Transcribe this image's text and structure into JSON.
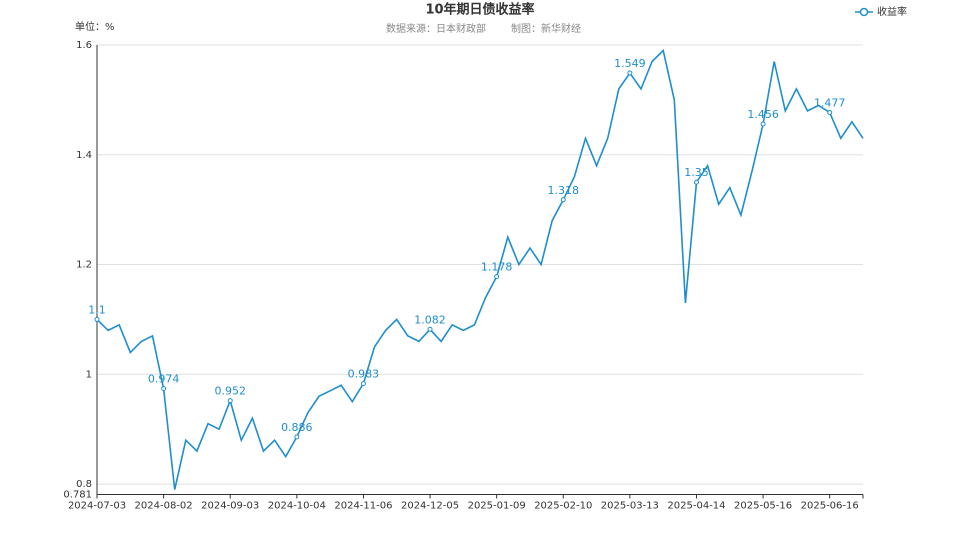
{
  "chart_data": {
    "type": "line",
    "title": "10年期日债收益率",
    "subtitle": [
      "数据来源：日本财政部",
      "制图：新华财经"
    ],
    "unit_label": "单位：%",
    "legend_position": "top-right",
    "categories": [
      "2024-07-03",
      null,
      null,
      null,
      null,
      null,
      "2024-08-02",
      null,
      null,
      null,
      null,
      null,
      "2024-09-03",
      null,
      null,
      null,
      null,
      null,
      "2024-10-04",
      null,
      null,
      null,
      null,
      null,
      "2024-11-06",
      null,
      null,
      null,
      null,
      null,
      "2024-12-05",
      null,
      null,
      null,
      null,
      null,
      "2025-01-09",
      null,
      null,
      null,
      null,
      null,
      "2025-02-10",
      null,
      null,
      null,
      null,
      null,
      "2025-03-13",
      null,
      null,
      null,
      null,
      null,
      "2025-04-14",
      null,
      null,
      null,
      null,
      null,
      "2025-05-16",
      null,
      null,
      null,
      null,
      null,
      "2025-06-16",
      null,
      null,
      null
    ],
    "series": [
      {
        "name": "收益率",
        "color": "#1e8ecf",
        "values": [
          1.1,
          1.08,
          1.09,
          1.04,
          1.06,
          1.07,
          0.974,
          0.79,
          0.88,
          0.86,
          0.91,
          0.9,
          0.952,
          0.88,
          0.92,
          0.86,
          0.88,
          0.85,
          0.886,
          0.93,
          0.96,
          0.97,
          0.98,
          0.95,
          0.983,
          1.05,
          1.08,
          1.1,
          1.07,
          1.06,
          1.082,
          1.06,
          1.09,
          1.08,
          1.09,
          1.14,
          1.178,
          1.25,
          1.2,
          1.23,
          1.2,
          1.28,
          1.318,
          1.36,
          1.43,
          1.38,
          1.43,
          1.52,
          1.549,
          1.52,
          1.57,
          1.59,
          1.5,
          1.13,
          1.35,
          1.38,
          1.31,
          1.34,
          1.29,
          1.37,
          1.456,
          1.57,
          1.48,
          1.52,
          1.48,
          1.49,
          1.477,
          1.43,
          1.46,
          1.43
        ],
        "value_labels": [
          "1.1",
          null,
          null,
          null,
          null,
          null,
          "0.974",
          null,
          null,
          null,
          null,
          null,
          "0.952",
          null,
          null,
          null,
          null,
          null,
          "0.886",
          null,
          null,
          null,
          null,
          null,
          "0.983",
          null,
          null,
          null,
          null,
          null,
          "1.082",
          null,
          null,
          null,
          null,
          null,
          "1.178",
          null,
          null,
          null,
          null,
          null,
          "1.318",
          null,
          null,
          null,
          null,
          null,
          "1.549",
          null,
          null,
          null,
          null,
          null,
          "1.35",
          null,
          null,
          null,
          null,
          null,
          "1.456",
          null,
          null,
          null,
          null,
          null,
          "1.477",
          null,
          null,
          null
        ]
      }
    ],
    "ylim": [
      0.781,
      1.6
    ],
    "yticks": [
      0.781,
      0.8,
      1,
      1.2,
      1.4,
      1.6
    ],
    "grid": true
  }
}
